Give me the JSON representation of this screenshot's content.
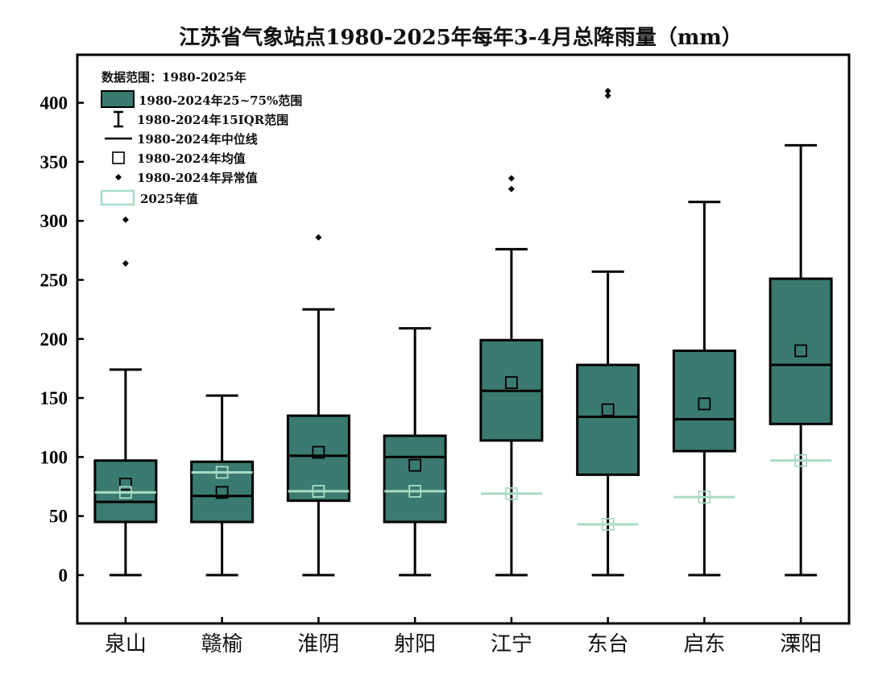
{
  "chart_data": {
    "type": "box",
    "title": "江苏省气象站点1980-2025年每年3-4月总降雨量（mm）",
    "xlabel": "",
    "ylabel": "",
    "ylim": [
      -40,
      440
    ],
    "yticks": [
      0,
      50,
      100,
      150,
      200,
      250,
      300,
      350,
      400
    ],
    "grid": false,
    "legend_position": "top-left",
    "legend": {
      "title": "数据范围：1980-2025年",
      "items": [
        {
          "kind": "box",
          "label": "1980-2024年25~75%范围"
        },
        {
          "kind": "whisker",
          "label": "1980-2024年15IQR范围"
        },
        {
          "kind": "median",
          "label": "1980-2024年中位线"
        },
        {
          "kind": "mean",
          "label": "1980-2024年均值"
        },
        {
          "kind": "outlier",
          "label": "1980-2024年异常值"
        },
        {
          "kind": "value2025",
          "label": "2025年值"
        }
      ]
    },
    "colors": {
      "box_fill": "#3a7a70",
      "stroke": "#000000",
      "value2025": "#a8dcc2"
    },
    "categories": [
      "泉山",
      "赣榆",
      "淮阴",
      "射阳",
      "江宁",
      "东台",
      "启东",
      "溧阳"
    ],
    "boxes": [
      {
        "whisker_low": 0,
        "q1": 45,
        "median": 62,
        "q3": 97,
        "whisker_high": 174,
        "mean": 77,
        "outliers": [
          264,
          301
        ],
        "value_2025": 70
      },
      {
        "whisker_low": 0,
        "q1": 45,
        "median": 67,
        "q3": 96,
        "whisker_high": 152,
        "mean": 70,
        "outliers": [],
        "value_2025": 87
      },
      {
        "whisker_low": 0,
        "q1": 63,
        "median": 101,
        "q3": 135,
        "whisker_high": 225,
        "mean": 104,
        "outliers": [
          286
        ],
        "value_2025": 71
      },
      {
        "whisker_low": 0,
        "q1": 45,
        "median": 100,
        "q3": 118,
        "whisker_high": 209,
        "mean": 93,
        "outliers": [],
        "value_2025": 71
      },
      {
        "whisker_low": 0,
        "q1": 114,
        "median": 156,
        "q3": 199,
        "whisker_high": 276,
        "mean": 163,
        "outliers": [
          327,
          336
        ],
        "value_2025": 69
      },
      {
        "whisker_low": 0,
        "q1": 85,
        "median": 134,
        "q3": 178,
        "whisker_high": 257,
        "mean": 140,
        "outliers": [
          406,
          410
        ],
        "value_2025": 43
      },
      {
        "whisker_low": 0,
        "q1": 105,
        "median": 132,
        "q3": 190,
        "whisker_high": 316,
        "mean": 145,
        "outliers": [],
        "value_2025": 66
      },
      {
        "whisker_low": 0,
        "q1": 128,
        "median": 178,
        "q3": 251,
        "whisker_high": 364,
        "mean": 190,
        "outliers": [],
        "value_2025": 97
      }
    ]
  }
}
